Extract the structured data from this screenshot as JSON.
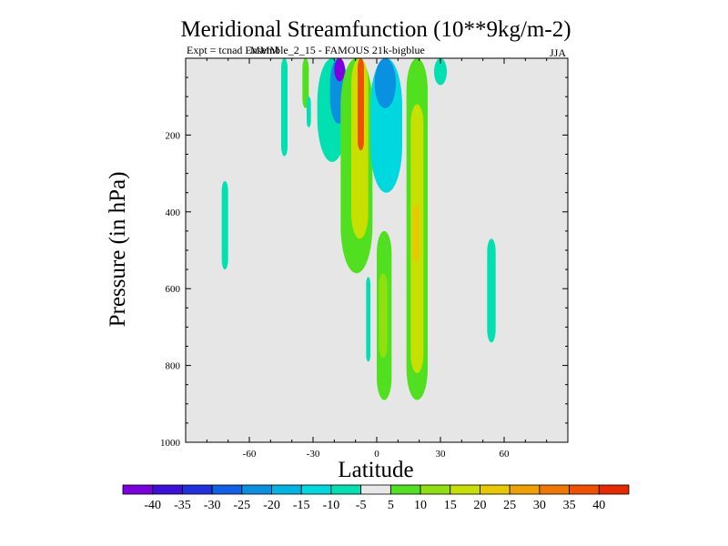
{
  "chart_data": {
    "type": "heatmap",
    "title": "Meridional Streamfunction (10**9kg/m-2)",
    "subtitle": "Expt = tcnad Ensemble_2_15 - FAMOUS 21k-bigblue",
    "subtitle_overprint": "MMM",
    "season_label": "JJA",
    "xlabel": "Latitude",
    "ylabel": "Pressure (in hPa)",
    "xlim": [
      -90,
      90
    ],
    "ylim": [
      1000,
      0
    ],
    "x_ticks": [
      {
        "value": -60,
        "label": "-60"
      },
      {
        "value": -30,
        "label": "-30"
      },
      {
        "value": 0,
        "label": "0"
      },
      {
        "value": 30,
        "label": "30"
      },
      {
        "value": 60,
        "label": "60"
      }
    ],
    "y_ticks": [
      {
        "value": 200,
        "label": "200"
      },
      {
        "value": 400,
        "label": "400"
      },
      {
        "value": 600,
        "label": "600"
      },
      {
        "value": 800,
        "label": "800"
      },
      {
        "value": 1000,
        "label": "1000"
      }
    ],
    "background_color": "#e6e6e6",
    "colorbar": {
      "colors": [
        "#7a00e0",
        "#3c10d8",
        "#2030e0",
        "#1060e8",
        "#0a90e0",
        "#00b4e4",
        "#00d8e0",
        "#00e0b0",
        "#e8e8e8",
        "#50e020",
        "#90e010",
        "#c8e000",
        "#e8c800",
        "#f0a000",
        "#f07800",
        "#f05000",
        "#e82800"
      ],
      "labels": [
        "-40",
        "-35",
        "-30",
        "-25",
        "-20",
        "-15",
        "-10",
        "-5",
        "5",
        "10",
        "15",
        "20",
        "25",
        "30",
        "35",
        "40"
      ]
    },
    "contour_regions": [
      {
        "name": "sh-isolated-70",
        "color_index": 7,
        "lat_range": [
          -73,
          -70
        ],
        "p_range": [
          320,
          550
        ]
      },
      {
        "name": "sh-lobe-45",
        "color_index": 7,
        "lat_range": [
          -45,
          -42
        ],
        "p_range": [
          0,
          255
        ]
      },
      {
        "name": "sh-upper-strip-32",
        "color_index": 9,
        "lat_range": [
          -35,
          -32
        ],
        "p_range": [
          0,
          130
        ]
      },
      {
        "name": "sh-upper-strip-32-edge",
        "color_index": 7,
        "lat_range": [
          -33,
          -31
        ],
        "p_range": [
          100,
          180
        ]
      },
      {
        "name": "negative-cell-outer",
        "color_index": 7,
        "lat_range": [
          -28,
          -14
        ],
        "p_range": [
          0,
          270
        ]
      },
      {
        "name": "negative-cell-inner",
        "color_index": 4,
        "lat_range": [
          -22,
          -14
        ],
        "p_range": [
          0,
          170
        ]
      },
      {
        "name": "negative-cell-core",
        "color_index": 0,
        "lat_range": [
          -20,
          -15
        ],
        "p_range": [
          0,
          60
        ]
      },
      {
        "name": "hadley-cell-outer",
        "color_index": 9,
        "lat_range": [
          -17,
          -2
        ],
        "p_range": [
          0,
          560
        ]
      },
      {
        "name": "hadley-cell-mid",
        "color_index": 11,
        "lat_range": [
          -12,
          -4
        ],
        "p_range": [
          0,
          470
        ]
      },
      {
        "name": "hadley-cell-core",
        "color_index": 15,
        "lat_range": [
          -9,
          -6
        ],
        "p_range": [
          0,
          240
        ]
      },
      {
        "name": "tropical-negative-outer",
        "color_index": 6,
        "lat_range": [
          -3,
          12
        ],
        "p_range": [
          0,
          350
        ]
      },
      {
        "name": "tropical-negative-inner",
        "color_index": 4,
        "lat_range": [
          -1,
          9
        ],
        "p_range": [
          0,
          130
        ]
      },
      {
        "name": "equatorial-lower-positive",
        "color_index": 9,
        "lat_range": [
          0,
          7
        ],
        "p_range": [
          450,
          890
        ]
      },
      {
        "name": "equatorial-lower-positive-core",
        "color_index": 10,
        "lat_range": [
          1,
          5
        ],
        "p_range": [
          560,
          780
        ]
      },
      {
        "name": "equatorial-lower-negative",
        "color_index": 7,
        "lat_range": [
          -5,
          -3
        ],
        "p_range": [
          570,
          790
        ]
      },
      {
        "name": "nh-positive-outer",
        "color_index": 9,
        "lat_range": [
          14,
          24
        ],
        "p_range": [
          0,
          890
        ]
      },
      {
        "name": "nh-positive-inner",
        "color_index": 11,
        "lat_range": [
          16,
          22
        ],
        "p_range": [
          120,
          820
        ]
      },
      {
        "name": "nh-positive-core",
        "color_index": 12,
        "lat_range": [
          17,
          20
        ],
        "p_range": [
          380,
          530
        ]
      },
      {
        "name": "nh-upper-negative",
        "color_index": 7,
        "lat_range": [
          27,
          33
        ],
        "p_range": [
          0,
          70
        ]
      },
      {
        "name": "nh-isolated-55",
        "color_index": 7,
        "lat_range": [
          52,
          56
        ],
        "p_range": [
          470,
          740
        ]
      }
    ]
  }
}
